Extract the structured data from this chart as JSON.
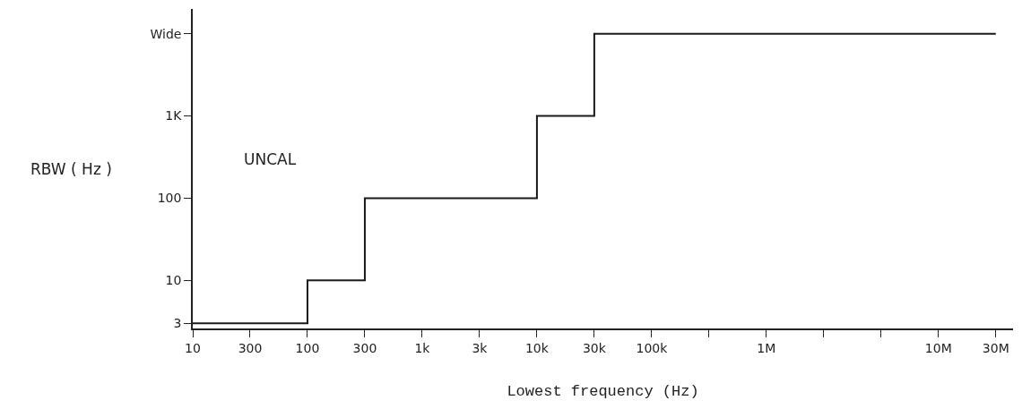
{
  "chart_data": {
    "type": "step",
    "xlabel": "Lowest frequency (Hz)",
    "ylabel": "RBW ( Hz )",
    "annotations": [
      "UNCAL"
    ],
    "categories": [
      "10",
      "300",
      "100",
      "300",
      "1k",
      "3k",
      "10k",
      "30k",
      "100k",
      null,
      "1M",
      null,
      null,
      "10M",
      "30M"
    ],
    "series": [
      {
        "color": "#1a1a1a",
        "values": [
          3,
          3,
          10,
          100,
          100,
          100,
          1000,
          10000,
          10000,
          10000,
          10000,
          10000,
          10000,
          10000,
          10000
        ]
      }
    ],
    "log": "y",
    "marker": "none",
    "line_style": "solid",
    "ylim": [
      2.6,
      20000
    ],
    "yticks": [
      3,
      10,
      100,
      {
        "value": 1000,
        "label": "1K"
      },
      {
        "value": 10000,
        "label": "Wide"
      }
    ]
  }
}
